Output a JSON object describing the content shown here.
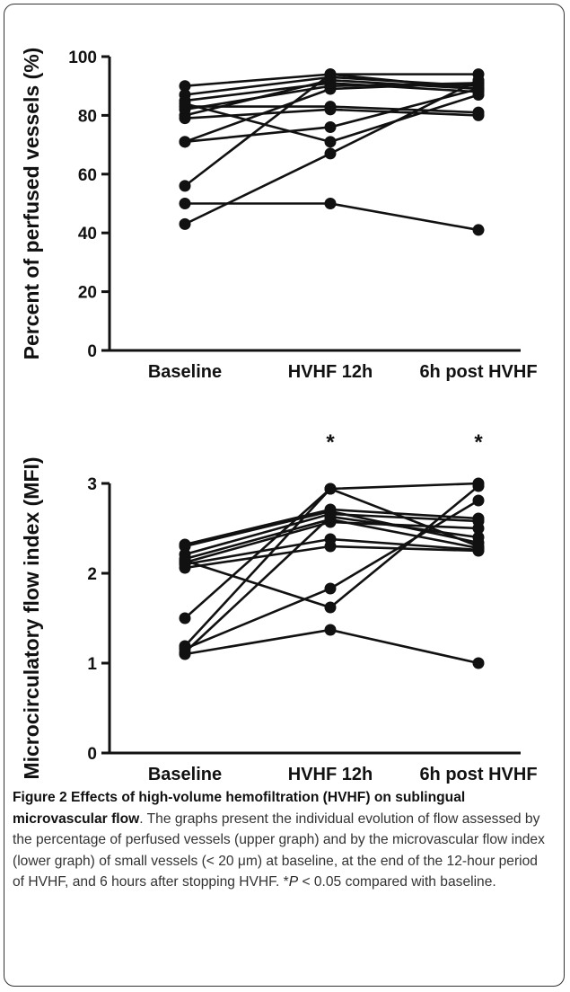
{
  "chart_data": [
    {
      "type": "line",
      "ylabel": "Percent of perfused vessels (%)",
      "categories": [
        "Baseline",
        "HVHF 12h",
        "6h post HVHF"
      ],
      "ylim": [
        0,
        100
      ],
      "yticks": [
        0,
        20,
        40,
        60,
        80,
        100
      ],
      "significance": [
        "",
        "",
        ""
      ],
      "series": [
        {
          "values": [
            90,
            94,
            94
          ]
        },
        {
          "values": [
            87,
            93,
            90
          ]
        },
        {
          "values": [
            85,
            91,
            88
          ]
        },
        {
          "values": [
            83,
            83,
            81
          ]
        },
        {
          "values": [
            82,
            90,
            91
          ]
        },
        {
          "values": [
            80,
            92,
            89
          ]
        },
        {
          "values": [
            79,
            82,
            80
          ]
        },
        {
          "values": [
            71,
            89,
            91
          ]
        },
        {
          "values": [
            71,
            76,
            89
          ]
        },
        {
          "values": [
            56,
            94,
            89
          ]
        },
        {
          "values": [
            50,
            50,
            41
          ]
        },
        {
          "values": [
            43,
            67,
            92
          ]
        },
        {
          "values": [
            84,
            71,
            87
          ]
        }
      ]
    },
    {
      "type": "line",
      "ylabel": "Microcirculatory flow index (MFI)",
      "categories": [
        "Baseline",
        "HVHF 12h",
        "6h post HVHF"
      ],
      "ylim": [
        0,
        3
      ],
      "yticks": [
        0,
        1,
        2,
        3
      ],
      "significance": [
        "",
        "*",
        "*"
      ],
      "series": [
        {
          "values": [
            2.32,
            2.71,
            2.61
          ]
        },
        {
          "values": [
            2.3,
            2.69,
            2.34
          ]
        },
        {
          "values": [
            2.21,
            2.66,
            2.58
          ]
        },
        {
          "values": [
            2.16,
            2.6,
            2.28
          ]
        },
        {
          "values": [
            2.12,
            2.57,
            2.5
          ]
        },
        {
          "values": [
            2.1,
            2.38,
            2.26
          ]
        },
        {
          "values": [
            2.06,
            2.3,
            2.25
          ]
        },
        {
          "values": [
            2.14,
            1.62,
            2.97
          ]
        },
        {
          "values": [
            1.5,
            2.94,
            2.3
          ]
        },
        {
          "values": [
            1.19,
            2.94,
            3.0
          ]
        },
        {
          "values": [
            1.16,
            1.83,
            2.81
          ]
        },
        {
          "values": [
            1.12,
            2.63,
            2.4
          ]
        },
        {
          "values": [
            1.1,
            1.37,
            1.0
          ]
        }
      ]
    }
  ],
  "caption": {
    "title": "Figure 2 Effects of high-volume hemofiltration (HVHF) on sublingual microvascular flow",
    "body_before_p": ". The graphs present the individual evolution of flow assessed by the percentage of perfused vessels (upper graph) and by the microvascular flow index (lower graph) of small vessels (< 20 μm) at baseline, at the end of the 12-hour period of HVHF, and 6 hours after stopping HVHF. *",
    "p_symbol": "P",
    "body_after_p": " < 0.05 compared with baseline."
  }
}
